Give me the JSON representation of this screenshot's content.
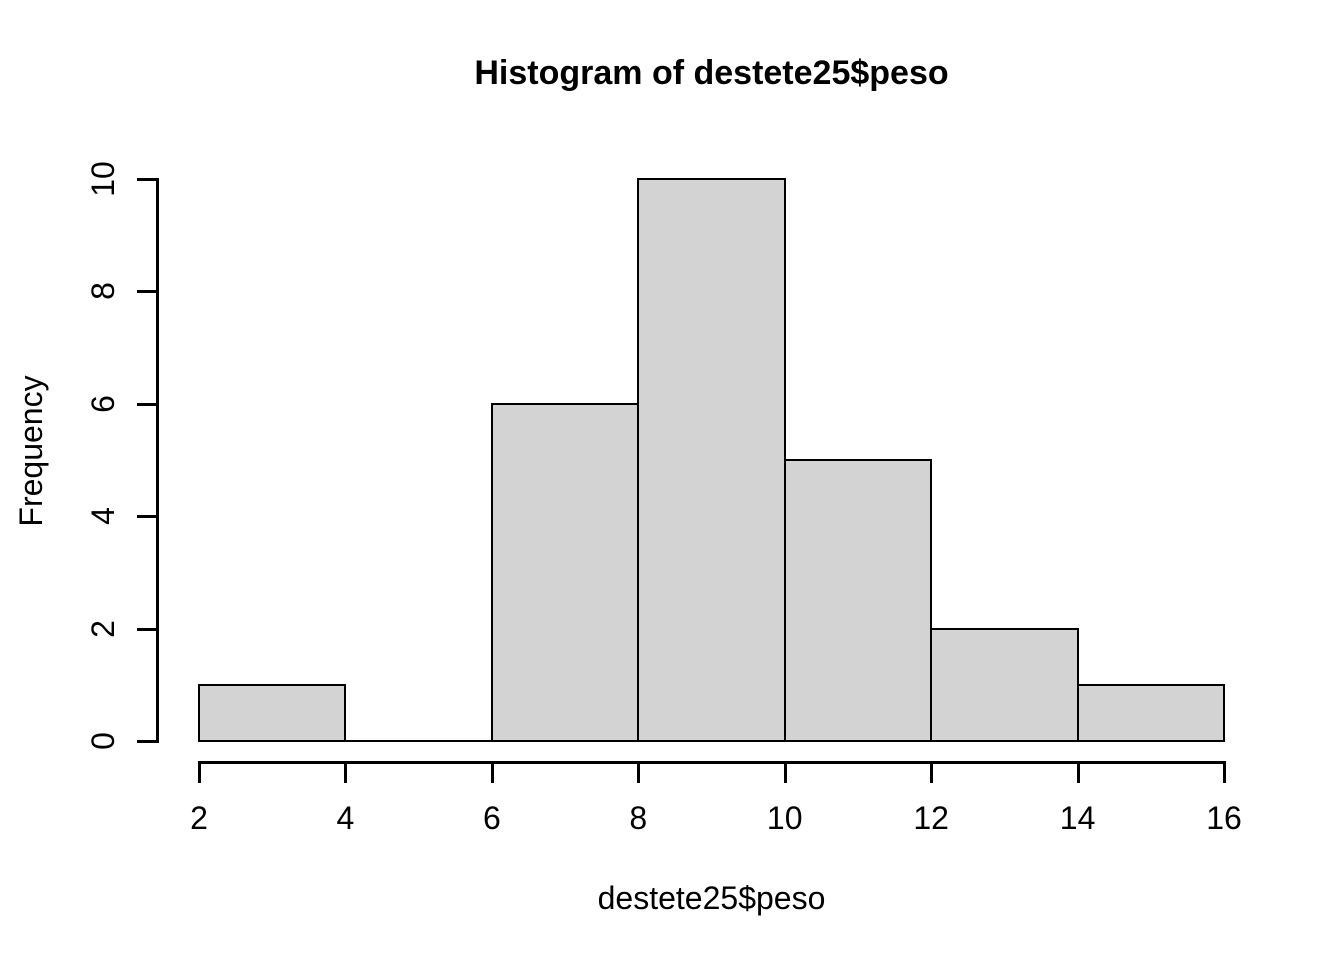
{
  "chart_data": {
    "type": "bar",
    "subtype": "histogram",
    "title": "Histogram of destete25$peso",
    "xlabel": "destete25$peso",
    "ylabel": "Frequency",
    "bins": [
      {
        "x0": 2,
        "x1": 4,
        "count": 1
      },
      {
        "x0": 4,
        "x1": 6,
        "count": 0
      },
      {
        "x0": 6,
        "x1": 8,
        "count": 6
      },
      {
        "x0": 8,
        "x1": 10,
        "count": 10
      },
      {
        "x0": 10,
        "x1": 12,
        "count": 5
      },
      {
        "x0": 12,
        "x1": 14,
        "count": 2
      },
      {
        "x0": 14,
        "x1": 16,
        "count": 1
      }
    ],
    "x_ticks": [
      2,
      4,
      6,
      8,
      10,
      12,
      14,
      16
    ],
    "y_ticks": [
      0,
      2,
      4,
      6,
      8,
      10
    ],
    "xlim": [
      2,
      16
    ],
    "ylim": [
      0,
      10
    ],
    "grid": false,
    "legend": null,
    "bar_fill": "#d3d3d3",
    "bar_border": "#000000",
    "axis_color": "#000000",
    "background": "#ffffff"
  }
}
